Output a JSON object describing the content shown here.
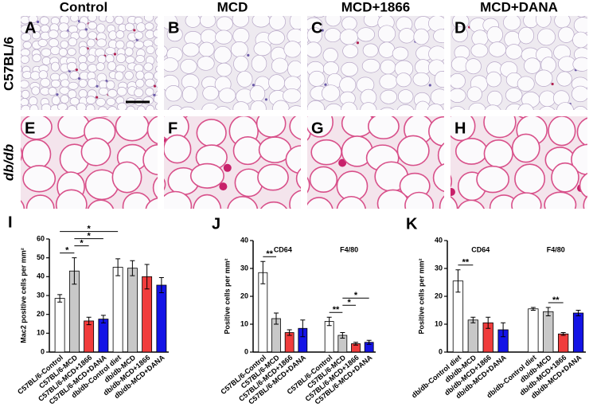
{
  "figure": {
    "columns": [
      "Control",
      "MCD",
      "MCD+1866",
      "MCD+DANA"
    ],
    "rows": [
      "C57BL/6",
      "db/db"
    ],
    "panels": [
      "A",
      "B",
      "C",
      "D",
      "E",
      "F",
      "G",
      "H"
    ]
  },
  "chart_data": [
    {
      "type": "bar",
      "panel": "I",
      "y_label": "Mac2 positive cells per mm²",
      "categories": [
        "C57BL/6-Control",
        "C57BL/6-MCD",
        "C57BL/6-MCD+1866",
        "C57BL/6-MCD+DANA",
        "db/db-Control diet",
        "db/db-MCD",
        "db/db-MCD+1866",
        "db/db-MCD+DANA"
      ],
      "values": [
        28.5,
        43,
        16.5,
        17.5,
        45,
        44.5,
        40,
        35.5
      ],
      "errors": [
        2,
        7,
        2,
        2,
        4.5,
        4,
        6.5,
        4
      ],
      "colors": [
        "#ffffff",
        "#c8c8c8",
        "#f03c3c",
        "#1414e6",
        "#ffffff",
        "#c8c8c8",
        "#f03c3c",
        "#1414e6"
      ],
      "ylim": [
        0,
        60
      ],
      "yticks": [
        0,
        10,
        20,
        30,
        40,
        50,
        60
      ],
      "significance": [
        {
          "label": "*",
          "between": [
            0,
            1
          ]
        },
        {
          "label": "*",
          "between": [
            1,
            2
          ]
        },
        {
          "label": "*",
          "between": [
            1,
            3
          ]
        },
        {
          "label": "*",
          "between": [
            0,
            4
          ]
        }
      ]
    },
    {
      "type": "bar",
      "panel": "J",
      "y_label": "Positive cells per mm²",
      "group_labels": [
        "CD64",
        "F4/80"
      ],
      "categories": [
        "C57BL/6-Control",
        "C57BL/6-MCD",
        "C57BL/6-MCD+1866",
        "C57BL/6-MCD+DANA",
        "C57BL/6-Control",
        "C57BL/6-MCD",
        "C57BL/6-MCD+1866",
        "C57BL/6-MCD+DANA"
      ],
      "values": [
        28.5,
        12,
        7,
        8.5,
        11,
        6,
        3,
        3.5
      ],
      "errors": [
        4,
        2,
        1,
        3,
        1.5,
        1,
        0.5,
        0.7
      ],
      "colors": [
        "#ffffff",
        "#c8c8c8",
        "#f03c3c",
        "#1414e6",
        "#ffffff",
        "#c8c8c8",
        "#f03c3c",
        "#1414e6"
      ],
      "ylim": [
        0,
        40
      ],
      "yticks": [
        0,
        10,
        20,
        30,
        40
      ],
      "significance": [
        {
          "label": "**",
          "between": [
            0,
            1
          ]
        },
        {
          "label": "**",
          "between": [
            4,
            5
          ]
        },
        {
          "label": "*",
          "between": [
            5,
            6
          ]
        },
        {
          "label": "*",
          "between": [
            5,
            7
          ]
        }
      ]
    },
    {
      "type": "bar",
      "panel": "K",
      "y_label": "Positive cells per mm²",
      "group_labels": [
        "CD64",
        "F4/80"
      ],
      "categories": [
        "db/db-Control diet",
        "db/db-MCD",
        "db/db-MCD+1866",
        "db/db-MCD+DANA",
        "db/db-Control diet",
        "db/db-MCD",
        "db/db-MCD+1866",
        "db/db-MCD+DANA"
      ],
      "values": [
        25.5,
        11.5,
        10.5,
        8,
        15.5,
        14.5,
        6.5,
        14
      ],
      "errors": [
        4,
        1,
        2,
        2.5,
        0.5,
        1.5,
        0.5,
        1
      ],
      "colors": [
        "#ffffff",
        "#c8c8c8",
        "#f03c3c",
        "#1414e6",
        "#ffffff",
        "#c8c8c8",
        "#f03c3c",
        "#1414e6"
      ],
      "ylim": [
        0,
        40
      ],
      "yticks": [
        0,
        10,
        20,
        30,
        40
      ],
      "significance": [
        {
          "label": "**",
          "between": [
            0,
            1
          ]
        },
        {
          "label": "**",
          "between": [
            5,
            6
          ]
        }
      ]
    }
  ]
}
